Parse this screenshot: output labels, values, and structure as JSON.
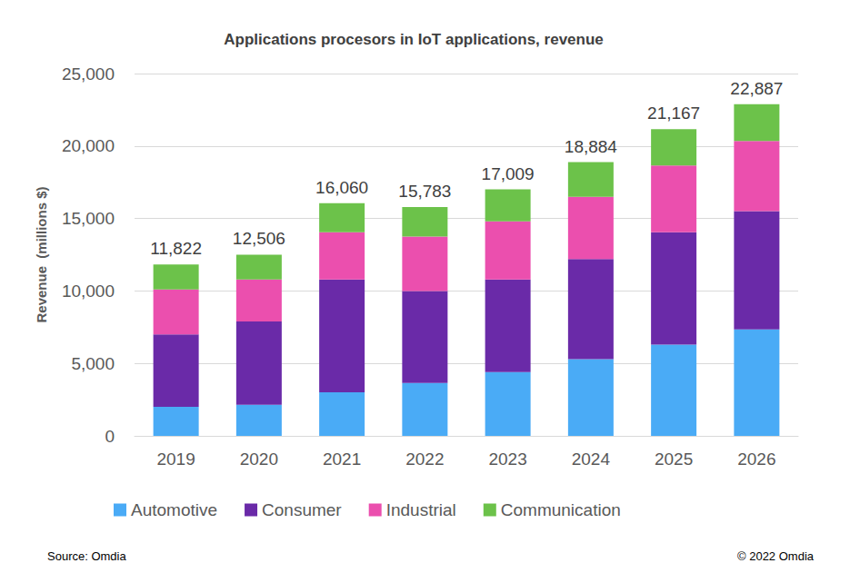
{
  "chart_data": {
    "type": "bar",
    "title": "Applications procesors in IoT applications, revenue",
    "y_label": "Revenue  (millions $)",
    "source": "Source: Omdia",
    "copyright": "© 2022 Omdia",
    "stacked": true,
    "grid": true,
    "legend": "bottom",
    "categories": [
      "2019",
      "2020",
      "2021",
      "2022",
      "2023",
      "2024",
      "2025",
      "2026"
    ],
    "series": [
      {
        "name": "Automotive",
        "color": "#4aabf6",
        "values": [
          2000,
          2150,
          3000,
          3650,
          4400,
          5300,
          6300,
          7350
        ]
      },
      {
        "name": "Consumer",
        "color": "#6a2aa8",
        "values": [
          5000,
          5750,
          7800,
          6350,
          6400,
          6900,
          7750,
          8150
        ]
      },
      {
        "name": "Industrial",
        "color": "#eb4fae",
        "values": [
          3100,
          2900,
          3250,
          3750,
          4000,
          4300,
          4600,
          4850
        ]
      },
      {
        "name": "Communication",
        "color": "#6cc24a",
        "values": [
          1722,
          1706,
          2010,
          2033,
          2209,
          2384,
          2517,
          2537
        ]
      }
    ],
    "totals": [
      11822,
      12506,
      16060,
      15783,
      17009,
      18884,
      21167,
      22887
    ],
    "total_labels": [
      "11,822",
      "12,506",
      "16,060",
      "15,783",
      "17,009",
      "18,884",
      "21,167",
      "22,887"
    ],
    "ylim": [
      0,
      25000
    ],
    "yticks": [
      0,
      {
        "value": 5000,
        "label": "5,000"
      },
      {
        "value": 10000,
        "label": "10,000"
      },
      {
        "value": 15000,
        "label": "15,000"
      },
      {
        "value": 20000,
        "label": "20,000"
      },
      {
        "value": 25000,
        "label": "25,000"
      }
    ]
  }
}
